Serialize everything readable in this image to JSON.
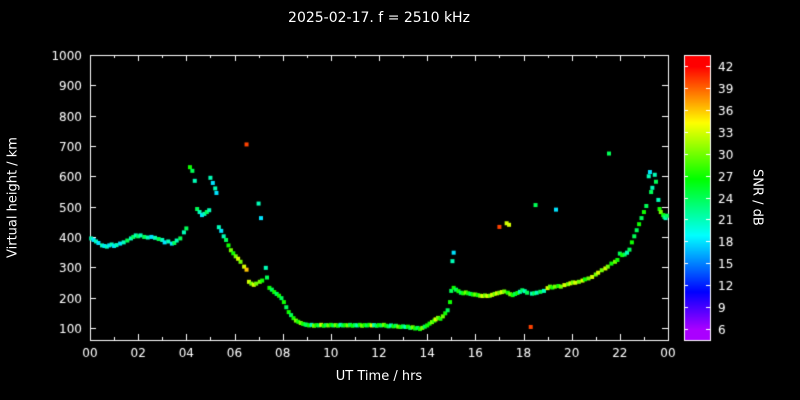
{
  "title": "2025-02-17. f = 2510 kHz",
  "colors": {
    "background": "#000000",
    "foreground": "#ffffff"
  },
  "chart_data": {
    "type": "scatter",
    "title": "2025-02-17. f = 2510 kHz",
    "xlabel": "UT Time / hrs",
    "ylabel": "Virtual height / km",
    "colorbar_label": "SNR / dB",
    "xlim": [
      0,
      24
    ],
    "ylim": [
      60,
      1000
    ],
    "x_tick_values": [
      0,
      2,
      4,
      6,
      8,
      10,
      12,
      14,
      16,
      18,
      20,
      22,
      24
    ],
    "x_tick_labels": [
      "00",
      "02",
      "04",
      "06",
      "08",
      "10",
      "12",
      "14",
      "16",
      "18",
      "20",
      "22",
      "00"
    ],
    "x_minor_step": 1,
    "y_tick_values": [
      100,
      200,
      300,
      400,
      500,
      600,
      700,
      800,
      900,
      1000
    ],
    "colorbar_ticks": [
      6,
      9,
      12,
      15,
      18,
      21,
      24,
      27,
      30,
      33,
      36,
      39,
      42
    ],
    "colorbar_range": [
      4.5,
      43.5
    ],
    "snr_color_range": [
      6,
      42
    ],
    "grid": false,
    "legend": "colorbar-right",
    "points": [
      [
        0.05,
        395,
        21
      ],
      [
        0.15,
        390,
        18
      ],
      [
        0.25,
        385,
        21
      ],
      [
        0.35,
        380,
        18
      ],
      [
        0.5,
        372,
        21
      ],
      [
        0.6,
        370,
        18
      ],
      [
        0.7,
        368,
        21
      ],
      [
        0.8,
        372,
        18
      ],
      [
        0.9,
        375,
        21
      ],
      [
        1.0,
        370,
        18
      ],
      [
        1.1,
        373,
        21
      ],
      [
        1.25,
        378,
        18
      ],
      [
        1.4,
        382,
        21
      ],
      [
        1.55,
        388,
        24
      ],
      [
        1.7,
        395,
        21
      ],
      [
        1.8,
        400,
        24
      ],
      [
        1.9,
        405,
        21
      ],
      [
        2.0,
        402,
        24
      ],
      [
        2.1,
        405,
        21
      ],
      [
        2.25,
        400,
        24
      ],
      [
        2.4,
        398,
        21
      ],
      [
        2.55,
        400,
        18
      ],
      [
        2.7,
        397,
        21
      ],
      [
        2.85,
        393,
        24
      ],
      [
        3.0,
        390,
        21
      ],
      [
        3.1,
        382,
        18
      ],
      [
        3.25,
        385,
        21
      ],
      [
        3.4,
        378,
        18
      ],
      [
        3.5,
        380,
        24
      ],
      [
        3.6,
        388,
        21
      ],
      [
        3.75,
        395,
        24
      ],
      [
        3.9,
        415,
        21
      ],
      [
        4.0,
        428,
        24
      ],
      [
        4.15,
        630,
        27
      ],
      [
        4.25,
        618,
        24
      ],
      [
        4.35,
        585,
        21
      ],
      [
        4.45,
        492,
        24
      ],
      [
        4.55,
        482,
        21
      ],
      [
        4.65,
        472,
        18
      ],
      [
        4.75,
        476,
        21
      ],
      [
        4.85,
        482,
        24
      ],
      [
        4.95,
        488,
        21
      ],
      [
        5.0,
        595,
        21
      ],
      [
        5.1,
        578,
        18
      ],
      [
        5.2,
        560,
        21
      ],
      [
        5.25,
        545,
        18
      ],
      [
        5.35,
        432,
        21
      ],
      [
        5.45,
        420,
        18
      ],
      [
        5.55,
        402,
        21
      ],
      [
        5.65,
        390,
        24
      ],
      [
        5.75,
        372,
        27
      ],
      [
        5.85,
        356,
        30
      ],
      [
        5.95,
        346,
        27
      ],
      [
        6.05,
        336,
        30
      ],
      [
        6.15,
        328,
        33
      ],
      [
        6.25,
        318,
        30
      ],
      [
        6.5,
        705,
        40
      ],
      [
        6.4,
        302,
        33
      ],
      [
        6.5,
        292,
        36
      ],
      [
        6.6,
        252,
        33
      ],
      [
        6.7,
        246,
        30
      ],
      [
        6.8,
        242,
        33
      ],
      [
        6.9,
        246,
        30
      ],
      [
        7.0,
        510,
        21
      ],
      [
        7.1,
        462,
        18
      ],
      [
        7.05,
        252,
        30
      ],
      [
        7.15,
        256,
        27
      ],
      [
        7.3,
        298,
        21
      ],
      [
        7.35,
        266,
        24
      ],
      [
        7.45,
        232,
        27
      ],
      [
        7.55,
        226,
        24
      ],
      [
        7.65,
        218,
        27
      ],
      [
        7.75,
        212,
        24
      ],
      [
        7.85,
        206,
        27
      ],
      [
        7.95,
        198,
        24
      ],
      [
        8.05,
        185,
        27
      ],
      [
        8.15,
        168,
        24
      ],
      [
        8.25,
        152,
        27
      ],
      [
        8.35,
        142,
        24
      ],
      [
        8.45,
        132,
        27
      ],
      [
        8.55,
        124,
        30
      ],
      [
        8.65,
        120,
        27
      ],
      [
        8.75,
        116,
        30
      ],
      [
        8.85,
        113,
        27
      ],
      [
        8.95,
        111,
        24
      ],
      [
        9.0,
        110,
        24
      ],
      [
        9.1,
        108,
        27
      ],
      [
        9.2,
        110,
        21
      ],
      [
        9.3,
        107,
        30
      ],
      [
        9.4,
        109,
        27
      ],
      [
        9.5,
        108,
        24
      ],
      [
        9.6,
        110,
        33
      ],
      [
        9.7,
        107,
        27
      ],
      [
        9.8,
        109,
        24
      ],
      [
        9.9,
        108,
        30
      ],
      [
        10.0,
        110,
        27
      ],
      [
        10.1,
        108,
        24
      ],
      [
        10.2,
        109,
        30
      ],
      [
        10.3,
        107,
        27
      ],
      [
        10.4,
        110,
        21
      ],
      [
        10.5,
        108,
        24
      ],
      [
        10.6,
        109,
        27
      ],
      [
        10.7,
        108,
        30
      ],
      [
        10.8,
        110,
        24
      ],
      [
        10.9,
        107,
        27
      ],
      [
        11.0,
        109,
        24
      ],
      [
        11.1,
        108,
        21
      ],
      [
        11.2,
        110,
        27
      ],
      [
        11.3,
        107,
        30
      ],
      [
        11.4,
        109,
        27
      ],
      [
        11.5,
        108,
        24
      ],
      [
        11.6,
        110,
        27
      ],
      [
        11.7,
        108,
        33
      ],
      [
        11.8,
        109,
        21
      ],
      [
        11.9,
        107,
        24
      ],
      [
        12.0,
        109,
        27
      ],
      [
        12.1,
        108,
        24
      ],
      [
        12.2,
        110,
        30
      ],
      [
        12.3,
        107,
        27
      ],
      [
        12.4,
        105,
        24
      ],
      [
        12.5,
        108,
        21
      ],
      [
        12.6,
        105,
        27
      ],
      [
        12.7,
        107,
        24
      ],
      [
        12.8,
        104,
        30
      ],
      [
        12.9,
        103,
        27
      ],
      [
        13.0,
        105,
        24
      ],
      [
        13.1,
        103,
        21
      ],
      [
        13.2,
        104,
        27
      ],
      [
        13.3,
        100,
        24
      ],
      [
        13.4,
        102,
        30
      ],
      [
        13.5,
        98,
        27
      ],
      [
        13.6,
        100,
        24
      ],
      [
        13.7,
        96,
        27
      ],
      [
        13.8,
        100,
        30
      ],
      [
        13.9,
        104,
        24
      ],
      [
        14.0,
        108,
        27
      ],
      [
        14.1,
        114,
        27
      ],
      [
        14.2,
        119,
        30
      ],
      [
        14.3,
        124,
        27
      ],
      [
        14.35,
        128,
        33
      ],
      [
        14.45,
        133,
        30
      ],
      [
        14.55,
        130,
        27
      ],
      [
        14.65,
        138,
        30
      ],
      [
        14.75,
        148,
        27
      ],
      [
        14.85,
        158,
        24
      ],
      [
        14.95,
        185,
        27
      ],
      [
        15.0,
        222,
        24
      ],
      [
        15.05,
        320,
        21
      ],
      [
        15.1,
        348,
        18
      ],
      [
        15.1,
        232,
        27
      ],
      [
        15.2,
        226,
        24
      ],
      [
        15.3,
        221,
        27
      ],
      [
        15.4,
        216,
        24
      ],
      [
        15.5,
        214,
        27
      ],
      [
        15.6,
        217,
        30
      ],
      [
        15.7,
        214,
        27
      ],
      [
        15.8,
        212,
        24
      ],
      [
        15.9,
        210,
        27
      ],
      [
        16.0,
        210,
        30
      ],
      [
        16.1,
        208,
        27
      ],
      [
        16.2,
        206,
        30
      ],
      [
        16.3,
        205,
        33
      ],
      [
        16.4,
        207,
        30
      ],
      [
        16.5,
        205,
        33
      ],
      [
        16.6,
        206,
        30
      ],
      [
        16.7,
        209,
        33
      ],
      [
        16.8,
        212,
        30
      ],
      [
        16.9,
        214,
        33
      ],
      [
        17.0,
        433,
        40
      ],
      [
        17.0,
        216,
        30
      ],
      [
        17.1,
        218,
        33
      ],
      [
        17.2,
        220,
        30
      ],
      [
        17.3,
        445,
        33
      ],
      [
        17.4,
        440,
        33
      ],
      [
        17.35,
        216,
        27
      ],
      [
        17.45,
        211,
        30
      ],
      [
        17.55,
        208,
        27
      ],
      [
        17.65,
        212,
        24
      ],
      [
        17.75,
        215,
        27
      ],
      [
        17.85,
        219,
        21
      ],
      [
        17.95,
        224,
        24
      ],
      [
        18.05,
        221,
        21
      ],
      [
        18.15,
        216,
        24
      ],
      [
        18.3,
        103,
        40
      ],
      [
        18.35,
        213,
        21
      ],
      [
        18.5,
        505,
        24
      ],
      [
        18.45,
        214,
        24
      ],
      [
        18.55,
        216,
        21
      ],
      [
        18.7,
        219,
        24
      ],
      [
        18.85,
        222,
        21
      ],
      [
        19.0,
        231,
        33
      ],
      [
        19.1,
        236,
        30
      ],
      [
        19.2,
        233,
        27
      ],
      [
        19.35,
        490,
        18
      ],
      [
        19.3,
        236,
        30
      ],
      [
        19.45,
        238,
        27
      ],
      [
        19.55,
        236,
        30
      ],
      [
        19.7,
        241,
        33
      ],
      [
        19.85,
        244,
        30
      ],
      [
        19.95,
        247,
        33
      ],
      [
        20.05,
        250,
        30
      ],
      [
        20.15,
        249,
        33
      ],
      [
        20.3,
        252,
        30
      ],
      [
        20.45,
        256,
        33
      ],
      [
        20.55,
        260,
        27
      ],
      [
        20.7,
        263,
        30
      ],
      [
        20.85,
        268,
        33
      ],
      [
        21.0,
        276,
        30
      ],
      [
        21.1,
        282,
        33
      ],
      [
        21.25,
        290,
        30
      ],
      [
        21.4,
        296,
        33
      ],
      [
        21.5,
        302,
        30
      ],
      [
        21.55,
        675,
        24
      ],
      [
        21.65,
        312,
        27
      ],
      [
        21.8,
        318,
        30
      ],
      [
        21.9,
        324,
        27
      ],
      [
        22.0,
        345,
        24
      ],
      [
        22.1,
        340,
        27
      ],
      [
        22.2,
        342,
        24
      ],
      [
        22.3,
        348,
        21
      ],
      [
        22.4,
        358,
        24
      ],
      [
        22.5,
        382,
        27
      ],
      [
        22.6,
        402,
        24
      ],
      [
        22.7,
        422,
        24
      ],
      [
        22.8,
        442,
        27
      ],
      [
        22.9,
        462,
        24
      ],
      [
        23.0,
        482,
        27
      ],
      [
        23.1,
        502,
        24
      ],
      [
        23.2,
        600,
        21
      ],
      [
        23.25,
        614,
        18
      ],
      [
        23.3,
        548,
        24
      ],
      [
        23.35,
        562,
        21
      ],
      [
        23.45,
        605,
        21
      ],
      [
        23.5,
        582,
        24
      ],
      [
        23.6,
        522,
        21
      ],
      [
        23.65,
        492,
        27
      ],
      [
        23.7,
        482,
        30
      ],
      [
        23.8,
        472,
        27
      ],
      [
        23.85,
        466,
        24
      ],
      [
        23.9,
        462,
        21
      ],
      [
        23.95,
        470,
        24
      ]
    ]
  }
}
